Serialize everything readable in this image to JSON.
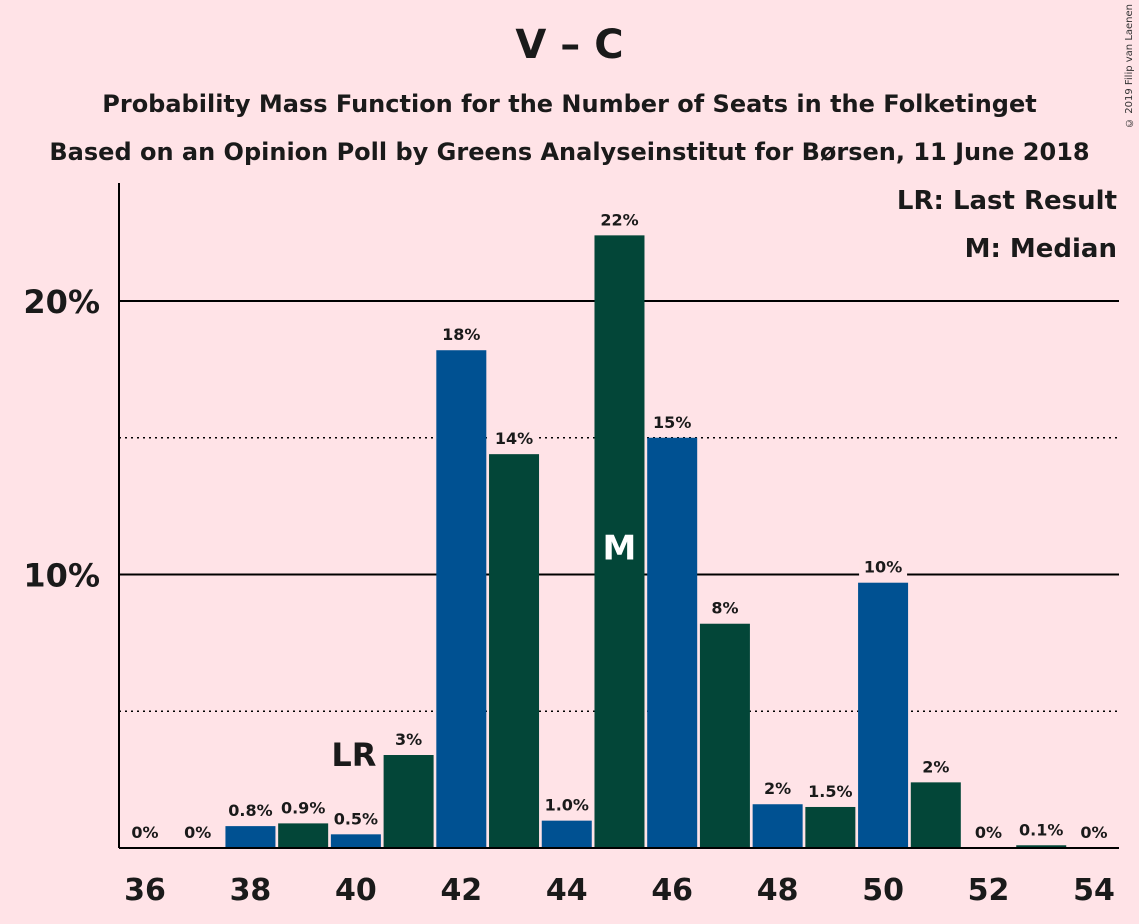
{
  "header": {
    "title": "V – C",
    "subtitle": "Probability Mass Function for the Number of Seats in the Folketinget",
    "subtitle2": "Based on an Opinion Poll by Greens Analyseinstitut for Børsen, 11 June 2018",
    "copyright": "© 2019 Filip van Laenen"
  },
  "legend": {
    "last_result": "LR: Last Result",
    "median": "M: Median"
  },
  "colors": {
    "blue": "#005192",
    "green": "#034638",
    "background": "#FFE3E7"
  },
  "chart_data": {
    "type": "bar",
    "x": [
      36,
      37,
      38,
      39,
      40,
      41,
      42,
      43,
      44,
      45,
      46,
      47,
      48,
      49,
      50,
      51,
      52,
      53,
      54
    ],
    "values": [
      0,
      0,
      0.8,
      0.9,
      0.5,
      3.4,
      18.2,
      14.4,
      1.0,
      22.4,
      15.0,
      8.2,
      1.6,
      1.5,
      9.7,
      2.4,
      0,
      0.1,
      0
    ],
    "labels": [
      "0%",
      "0%",
      "0.8%",
      "0.9%",
      "0.5%",
      "3%",
      "18%",
      "14%",
      "1.0%",
      "22%",
      "15%",
      "8%",
      "2%",
      "1.5%",
      "10%",
      "2%",
      "0%",
      "0.1%",
      "0%"
    ],
    "x_ticks": [
      "36",
      "38",
      "40",
      "42",
      "44",
      "46",
      "48",
      "50",
      "52",
      "54"
    ],
    "y_ticks": [
      {
        "value": 10,
        "label": "10%"
      },
      {
        "value": 20,
        "label": "20%"
      }
    ],
    "minor_gridlines": [
      5,
      15
    ],
    "ylim": [
      0,
      24.4
    ],
    "last_result": {
      "seats": 40,
      "label": "LR"
    },
    "median": {
      "seats": 45,
      "label": "M"
    },
    "grid": true,
    "legend_position": "top-right"
  }
}
